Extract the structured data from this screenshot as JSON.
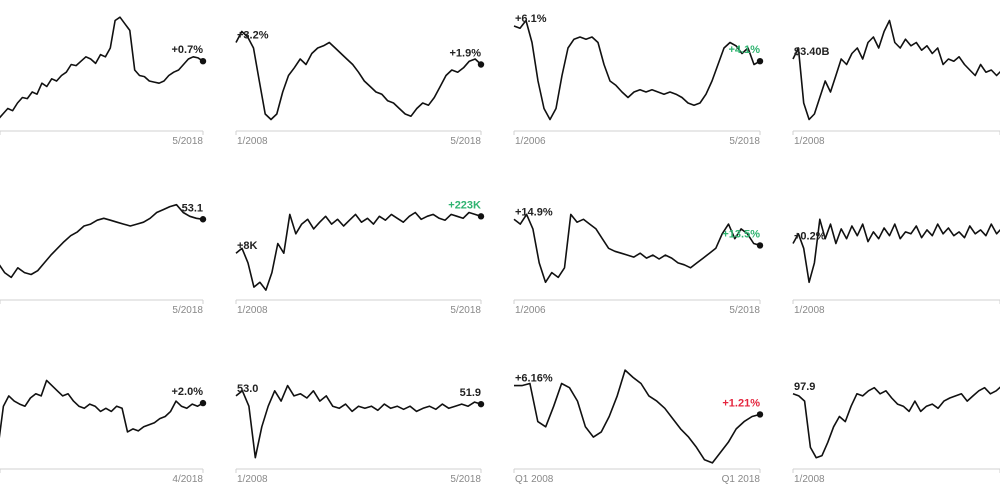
{
  "colors": {
    "line": "#111111",
    "positive": "#2fb370",
    "negative": "#e5263f",
    "neutral": "#222222",
    "axis": "#d0d0d0",
    "tick": "#888888"
  },
  "chart_data": [
    {
      "type": "line",
      "x_start": "",
      "x_end": "5/2018",
      "start_label": "",
      "end_label": "+0.7%",
      "end_color": "#222222",
      "ylim": [
        0,
        100
      ],
      "values": [
        5,
        10,
        15,
        13,
        20,
        25,
        24,
        30,
        28,
        38,
        35,
        42,
        40,
        45,
        48,
        55,
        54,
        58,
        62,
        60,
        56,
        64,
        62,
        70,
        95,
        98,
        92,
        86,
        50,
        45,
        44,
        40,
        39,
        38,
        40,
        45,
        48,
        50,
        55,
        60,
        62,
        61,
        58
      ]
    },
    {
      "type": "line",
      "x_start": "1/2008",
      "x_end": "5/2018",
      "start_label": "+3.2%",
      "end_label": "+1.9%",
      "end_color": "#222222",
      "ylim": [
        0,
        100
      ],
      "values": [
        75,
        85,
        80,
        70,
        40,
        10,
        5,
        10,
        30,
        45,
        52,
        60,
        55,
        65,
        70,
        72,
        75,
        70,
        65,
        60,
        55,
        48,
        40,
        35,
        30,
        28,
        22,
        20,
        15,
        10,
        8,
        15,
        20,
        18,
        25,
        35,
        45,
        50,
        48,
        52,
        58,
        60,
        55
      ]
    },
    {
      "type": "line",
      "x_start": "1/2006",
      "x_end": "5/2018",
      "start_label": "+6.1%",
      "end_label": "+4.1%",
      "end_color": "#2fb370",
      "ylim": [
        0,
        100
      ],
      "values": [
        90,
        88,
        95,
        75,
        40,
        15,
        5,
        15,
        45,
        70,
        78,
        80,
        78,
        80,
        75,
        55,
        40,
        36,
        30,
        25,
        30,
        32,
        30,
        32,
        30,
        28,
        30,
        28,
        25,
        20,
        18,
        20,
        28,
        40,
        55,
        70,
        75,
        72,
        65,
        70,
        55,
        58
      ]
    },
    {
      "type": "line",
      "x_start": "1/2008",
      "x_end": "",
      "start_label": "$3.40B",
      "end_label": "",
      "end_color": "#222222",
      "ylim": [
        0,
        100
      ],
      "values": [
        60,
        70,
        20,
        5,
        10,
        25,
        40,
        30,
        45,
        60,
        55,
        65,
        70,
        60,
        75,
        80,
        70,
        85,
        95,
        75,
        70,
        78,
        72,
        75,
        68,
        72,
        65,
        70,
        55,
        60,
        58,
        62,
        55,
        50,
        45,
        55,
        48,
        50,
        45,
        50
      ]
    },
    {
      "type": "line",
      "x_start": "",
      "x_end": "5/2018",
      "start_label": "",
      "end_label": "53.1",
      "end_color": "#222222",
      "ylim": [
        0,
        100
      ],
      "values": [
        30,
        20,
        15,
        25,
        20,
        18,
        22,
        30,
        38,
        45,
        52,
        58,
        62,
        68,
        70,
        74,
        76,
        74,
        72,
        70,
        68,
        70,
        72,
        76,
        82,
        85,
        88,
        90,
        82,
        78,
        76,
        75
      ]
    },
    {
      "type": "line",
      "x_start": "1/2008",
      "x_end": "5/2018",
      "start_label": "+8K",
      "end_label": "+223K",
      "end_color": "#2fb370",
      "ylim": [
        0,
        100
      ],
      "values": [
        40,
        45,
        30,
        5,
        10,
        2,
        20,
        50,
        40,
        80,
        60,
        70,
        75,
        65,
        72,
        78,
        70,
        75,
        68,
        74,
        80,
        72,
        76,
        70,
        78,
        74,
        80,
        76,
        72,
        78,
        82,
        75,
        78,
        80,
        76,
        74,
        80,
        78,
        76,
        82,
        80,
        78
      ]
    },
    {
      "type": "line",
      "x_start": "1/2006",
      "x_end": "5/2018",
      "start_label": "+14.9%",
      "end_label": "+13.5%",
      "end_color": "#2fb370",
      "ylim": [
        0,
        100
      ],
      "values": [
        75,
        70,
        80,
        65,
        30,
        10,
        20,
        15,
        25,
        80,
        72,
        75,
        70,
        65,
        55,
        45,
        42,
        40,
        38,
        36,
        40,
        35,
        38,
        34,
        38,
        35,
        30,
        28,
        25,
        30,
        35,
        40,
        45,
        60,
        70,
        55,
        65,
        60,
        50,
        48
      ]
    },
    {
      "type": "line",
      "x_start": "1/2008",
      "x_end": "",
      "start_label": "+0.2%",
      "end_label": "",
      "end_color": "#222222",
      "ylim": [
        0,
        100
      ],
      "values": [
        50,
        60,
        45,
        10,
        30,
        75,
        55,
        70,
        50,
        65,
        55,
        68,
        58,
        70,
        52,
        62,
        55,
        66,
        58,
        70,
        55,
        62,
        60,
        68,
        56,
        64,
        58,
        70,
        60,
        66,
        58,
        62,
        56,
        68,
        60,
        64,
        58,
        70,
        60,
        66
      ]
    },
    {
      "type": "line",
      "x_start": "",
      "x_end": "4/2018",
      "start_label": "",
      "end_label": "+2.0%",
      "end_color": "#222222",
      "ylim": [
        0,
        100
      ],
      "values": [
        20,
        60,
        70,
        65,
        62,
        60,
        68,
        72,
        70,
        85,
        80,
        75,
        70,
        72,
        65,
        60,
        58,
        62,
        60,
        55,
        58,
        55,
        60,
        58,
        35,
        38,
        36,
        40,
        42,
        44,
        48,
        50,
        55,
        65,
        60,
        58,
        62,
        60,
        63
      ]
    },
    {
      "type": "line",
      "x_start": "1/2008",
      "x_end": "5/2018",
      "start_label": "53.0",
      "end_label": "51.9",
      "end_color": "#222222",
      "ylim": [
        0,
        100
      ],
      "values": [
        70,
        75,
        60,
        10,
        40,
        60,
        75,
        65,
        80,
        70,
        72,
        68,
        75,
        65,
        70,
        60,
        58,
        62,
        55,
        60,
        58,
        60,
        56,
        62,
        58,
        60,
        57,
        60,
        55,
        58,
        60,
        57,
        62,
        58,
        60,
        62,
        60,
        64,
        62
      ]
    },
    {
      "type": "line",
      "x_start": "Q1 2008",
      "x_end": "Q1 2018",
      "start_label": "+6.16%",
      "end_label": "+1.21%",
      "end_color": "#e5263f",
      "ylim": [
        0,
        100
      ],
      "values": [
        80,
        80,
        82,
        45,
        40,
        60,
        82,
        78,
        65,
        40,
        30,
        35,
        50,
        70,
        95,
        88,
        82,
        70,
        65,
        58,
        48,
        38,
        30,
        20,
        8,
        5,
        15,
        25,
        38,
        45,
        50,
        52
      ]
    },
    {
      "type": "line",
      "x_start": "1/2008",
      "x_end": "",
      "start_label": "97.9",
      "end_label": "",
      "end_color": "#222222",
      "ylim": [
        0,
        100
      ],
      "values": [
        72,
        70,
        65,
        20,
        10,
        12,
        25,
        40,
        50,
        45,
        60,
        72,
        70,
        75,
        78,
        72,
        75,
        68,
        62,
        60,
        55,
        65,
        55,
        60,
        62,
        58,
        65,
        68,
        70,
        72,
        65,
        70,
        75,
        78,
        72,
        75,
        80
      ]
    }
  ]
}
